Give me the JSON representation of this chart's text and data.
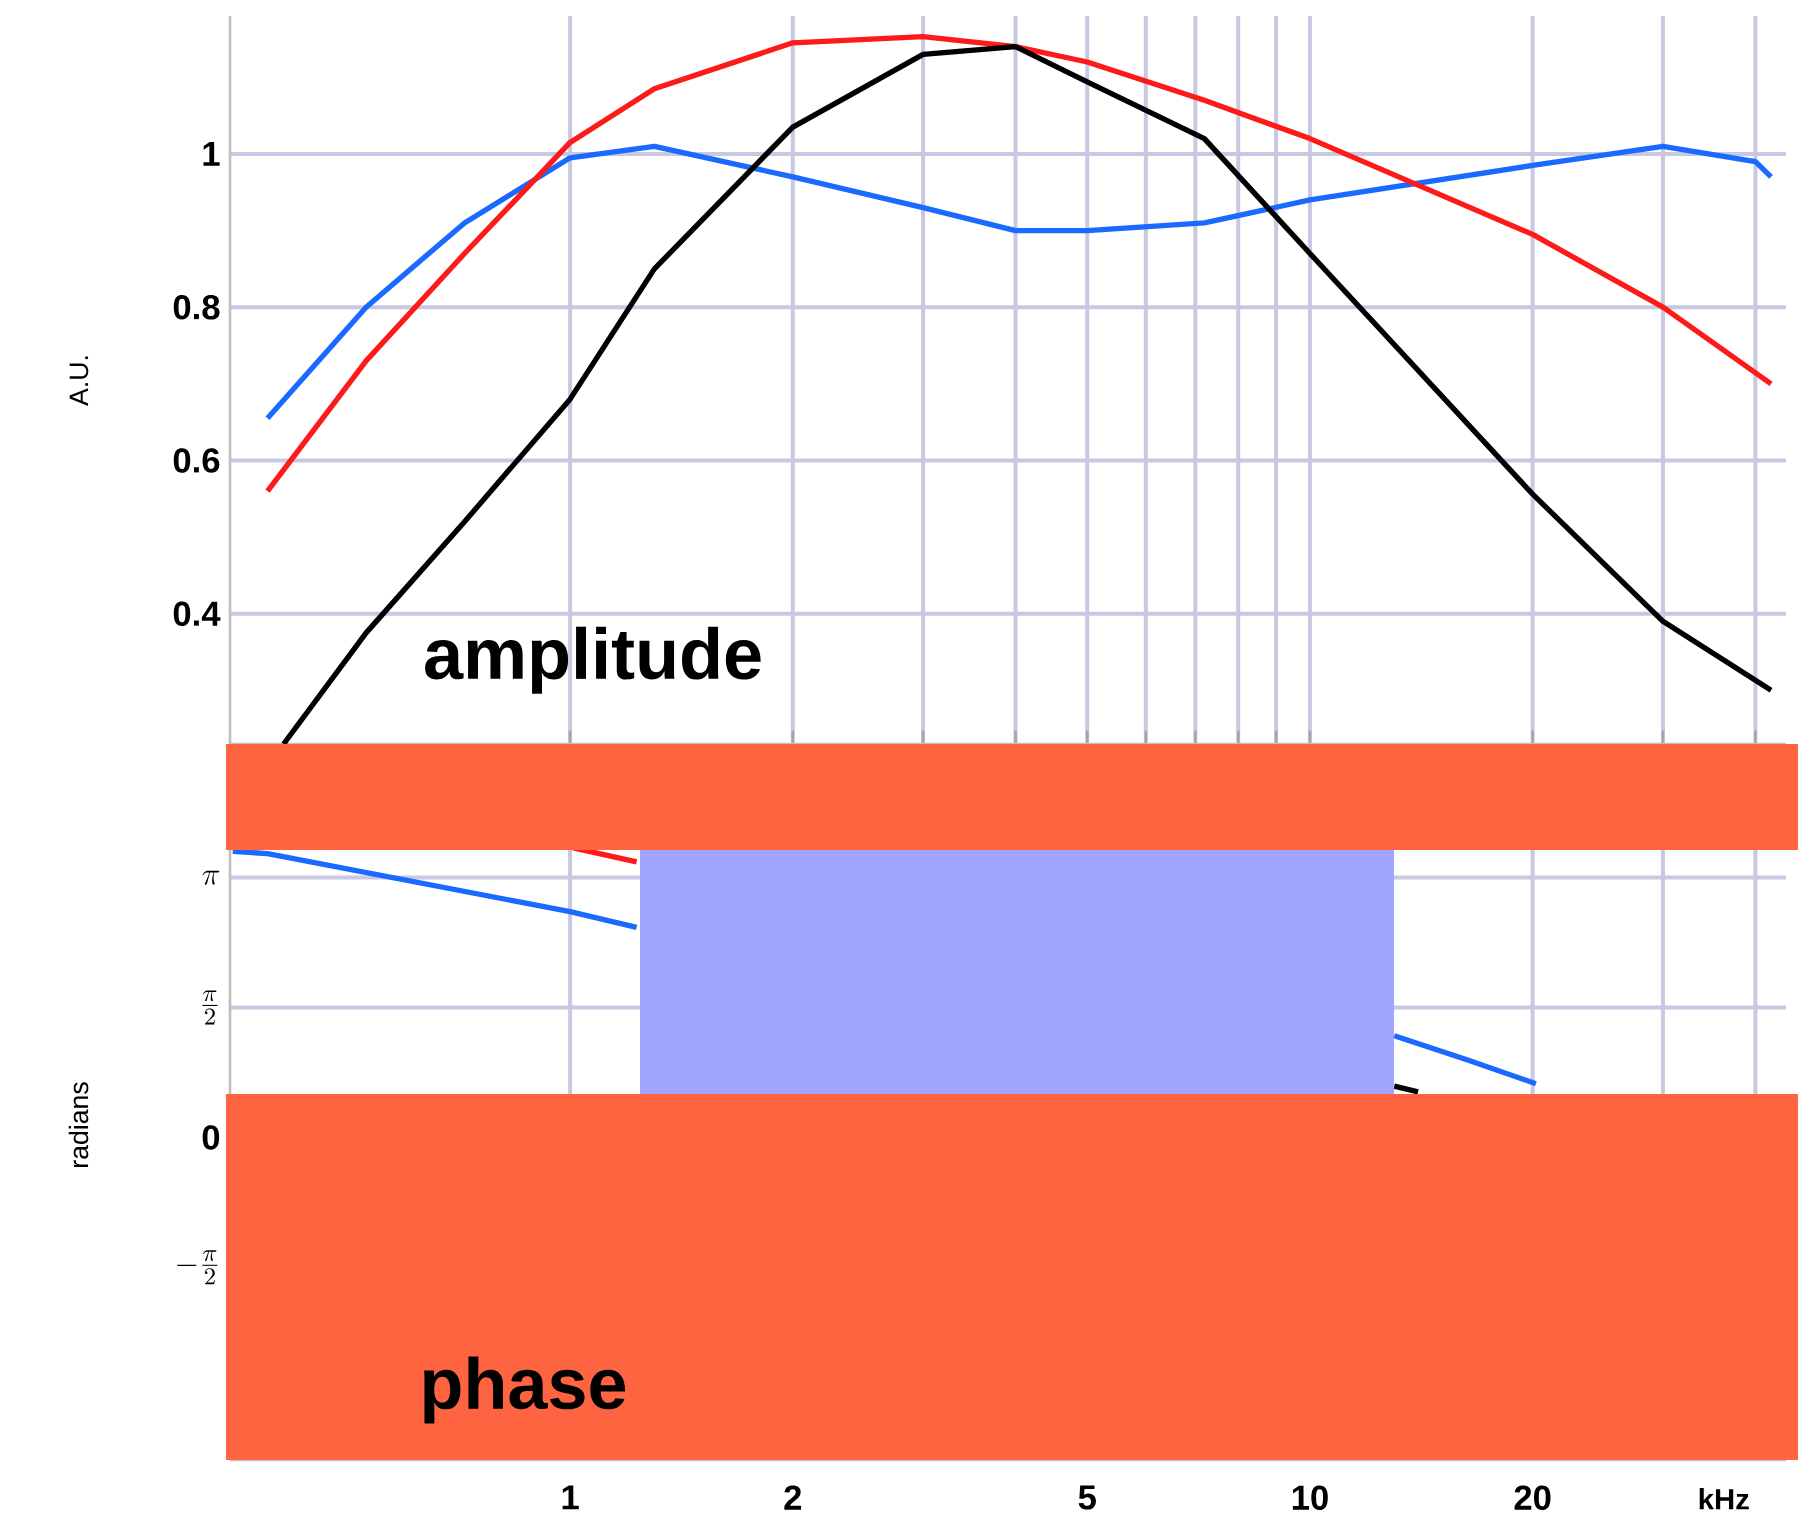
{
  "chart_data": [
    {
      "type": "line",
      "ylabel": "A.U.",
      "log": "x",
      "grid": true,
      "tick_labels": "y",
      "xlim": [
        0.347,
        44
      ],
      "ylim": [
        0.23,
        1.18
      ],
      "xticks": [
        {
          "value": 1,
          "label": null
        },
        {
          "value": 2,
          "label": null
        },
        {
          "value": 3,
          "label": null
        },
        {
          "value": 4,
          "label": null
        },
        {
          "value": 5,
          "label": null
        },
        {
          "value": 6,
          "label": null
        },
        {
          "value": 7,
          "label": null
        },
        {
          "value": 8,
          "label": null
        },
        {
          "value": 9,
          "label": null
        },
        {
          "value": 10,
          "label": null
        },
        {
          "value": 20,
          "label": null
        },
        {
          "value": 30,
          "label": null
        },
        {
          "value": 40,
          "label": null
        }
      ],
      "yticks": [
        0.4,
        0.6,
        0.8,
        1
      ],
      "annotations": [
        "amplitude"
      ],
      "series": [
        {
          "color": "#1a6aff",
          "x": [
            0.39,
            0.53,
            0.72,
            1.0,
            1.3,
            2,
            3,
            4,
            5,
            7.2,
            10,
            20,
            30,
            40,
            42
          ],
          "values": [
            0.655,
            0.8,
            0.91,
            0.995,
            1.01,
            0.97,
            0.93,
            0.9,
            0.9,
            0.91,
            0.94,
            0.985,
            1.01,
            0.99,
            0.97
          ]
        },
        {
          "color": "#ff1a1a",
          "x": [
            0.39,
            0.53,
            0.72,
            1.0,
            1.3,
            2,
            3,
            4,
            5,
            7.2,
            10,
            20,
            30,
            42
          ],
          "values": [
            0.56,
            0.73,
            0.87,
            1.015,
            1.085,
            1.145,
            1.153,
            1.14,
            1.12,
            1.07,
            1.02,
            0.895,
            0.8,
            0.7
          ]
        },
        {
          "color": "#000000",
          "x": [
            0.41,
            0.53,
            0.72,
            1.0,
            1.3,
            2,
            3,
            4,
            5,
            7.2,
            10,
            20,
            30,
            42
          ],
          "values": [
            0.23,
            0.375,
            0.52,
            0.68,
            0.85,
            1.035,
            1.13,
            1.14,
            1.094,
            1.02,
            0.87,
            0.556,
            0.39,
            0.3
          ]
        }
      ]
    },
    {
      "type": "line",
      "ylabel": "radians",
      "xlabel": "kHz",
      "log": "x",
      "grid": true,
      "xlim": [
        0.347,
        44
      ],
      "ylim": [
        -3.9,
        4.2
      ],
      "xticks": [
        1,
        2,
        5,
        10,
        20,
        {
          "value": 30,
          "label": null
        },
        {
          "value": 40,
          "label": null
        }
      ],
      "yticks": [
        {
          "value": -1.5708,
          "label": "-\\frac{\\pi}{2}"
        },
        0,
        {
          "value": 1.5708,
          "label": "\\frac{\\pi}{2}"
        },
        {
          "value": 3.1416,
          "label": "\\pi"
        }
      ],
      "annotations": [
        "phase"
      ],
      "series": [
        {
          "color": "#1a6aff",
          "x": [
            0.35,
            0.39,
            1.0,
            1.23,
            2,
            13,
            16.3,
            20.2
          ],
          "values": [
            3.46,
            3.43,
            2.73,
            2.54,
            null,
            1.23,
            0.94,
            0.65
          ]
        },
        {
          "color": "#ff1a1a",
          "x": [
            1.01,
            1.23
          ],
          "values": [
            3.5,
            3.33
          ]
        },
        {
          "color": "#000000",
          "x": [
            13,
            14
          ],
          "values": [
            0.62,
            0.55
          ]
        }
      ]
    }
  ]
}
